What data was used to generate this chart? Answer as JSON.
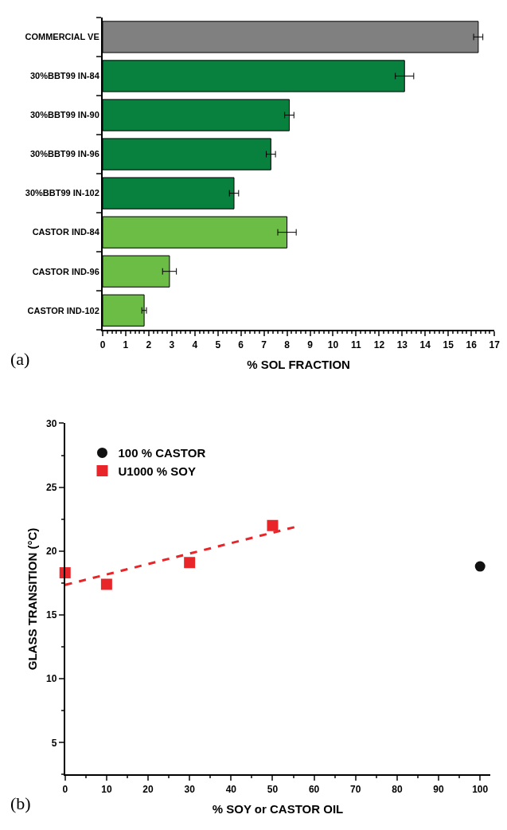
{
  "chart_data": [
    {
      "type": "bar",
      "orientation": "horizontal",
      "xlabel": "% SOL FRACTION",
      "categories": [
        "COMMERCIAL VE",
        "30%BBT99 IN-84",
        "30%BBT99 IN-90",
        "30%BBT99 IN-96",
        "30%BBT99 IN-102",
        "CASTOR IND-84",
        "CASTOR IND-96",
        "CASTOR IND-102"
      ],
      "values": [
        16.3,
        13.1,
        8.1,
        7.3,
        5.7,
        8.0,
        2.9,
        1.8
      ],
      "errors": [
        0.2,
        0.4,
        0.2,
        0.2,
        0.2,
        0.4,
        0.3,
        0.1
      ],
      "colors": [
        "#808080",
        "#08813f",
        "#08813f",
        "#08813f",
        "#08813f",
        "#6bbd45",
        "#6bbd45",
        "#6bbd45"
      ],
      "xlim": [
        0,
        17
      ],
      "xticks": [
        0,
        1,
        2,
        3,
        4,
        5,
        6,
        7,
        8,
        9,
        10,
        11,
        12,
        13,
        14,
        15,
        16,
        17
      ],
      "annotations": [
        "(a)"
      ]
    },
    {
      "type": "scatter",
      "xlabel": "% SOY or CASTOR OIL",
      "ylabel": "GLASS TRANSITION (°C)",
      "xlim": [
        0,
        102.5
      ],
      "xticks": [
        0,
        10,
        20,
        30,
        40,
        50,
        60,
        70,
        80,
        90,
        100
      ],
      "ylim": [
        2.5,
        30
      ],
      "yticks": [
        5,
        10,
        15,
        20,
        25,
        30
      ],
      "legend": "top left",
      "series": [
        {
          "name": "100 % CASTOR",
          "color": "#111111",
          "marker": "circle",
          "x": [
            100
          ],
          "values": [
            18.8
          ]
        },
        {
          "name": "U1000 % SOY",
          "color": "#e8262a",
          "marker": "square",
          "x": [
            0,
            10,
            30,
            50
          ],
          "values": [
            18.3,
            17.4,
            19.1,
            22.0
          ]
        },
        {
          "type": "line",
          "color": "#e8262a",
          "line_style": "dashed",
          "marker": "none",
          "x": [
            0,
            55.6
          ],
          "values": [
            17.35,
            21.9
          ]
        }
      ],
      "annotations": [
        "(b)"
      ]
    }
  ]
}
